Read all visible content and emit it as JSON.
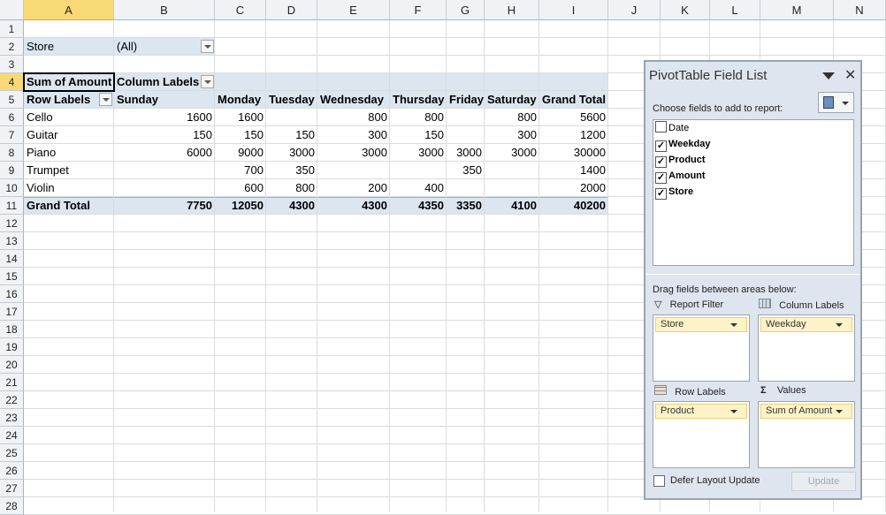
{
  "columns": [
    "A",
    "B",
    "C",
    "D",
    "E",
    "F",
    "G",
    "H",
    "I",
    "J",
    "K",
    "L",
    "M",
    "N"
  ],
  "rows": [
    "1",
    "2",
    "3",
    "4",
    "5",
    "6",
    "7",
    "8",
    "9",
    "10",
    "11",
    "12",
    "13",
    "14",
    "15",
    "16",
    "17",
    "18",
    "19",
    "20",
    "21",
    "22",
    "23",
    "24",
    "25",
    "26",
    "27",
    "28"
  ],
  "selected_cell": "A4",
  "pivot": {
    "filter_label": "Store",
    "filter_value": "(All)",
    "values_label": "Sum of Amount",
    "column_labels": "Column Labels",
    "row_labels": "Row Labels",
    "headers": [
      "Sunday",
      "Monday",
      "Tuesday",
      "Wednesday",
      "Thursday",
      "Friday",
      "Saturday",
      "Grand Total"
    ],
    "body": [
      {
        "label": "Cello",
        "values": [
          "1600",
          "1600",
          "",
          "800",
          "800",
          "",
          "800",
          "5600"
        ]
      },
      {
        "label": "Guitar",
        "values": [
          "150",
          "150",
          "150",
          "300",
          "150",
          "",
          "300",
          "1200"
        ]
      },
      {
        "label": "Piano",
        "values": [
          "6000",
          "9000",
          "3000",
          "3000",
          "3000",
          "3000",
          "3000",
          "30000"
        ]
      },
      {
        "label": "Trumpet",
        "values": [
          "",
          "700",
          "350",
          "",
          "",
          "350",
          "",
          "1400"
        ]
      },
      {
        "label": "Violin",
        "values": [
          "",
          "600",
          "800",
          "200",
          "400",
          "",
          "",
          "2000"
        ]
      }
    ],
    "total": {
      "label": "Grand Total",
      "values": [
        "7750",
        "12050",
        "4300",
        "4300",
        "4350",
        "3350",
        "4100",
        "40200"
      ]
    }
  },
  "field_list": {
    "title": "PivotTable Field List",
    "choose_label": "Choose fields to add to report:",
    "fields": [
      {
        "name": "Date",
        "checked": false
      },
      {
        "name": "Weekday",
        "checked": true
      },
      {
        "name": "Product",
        "checked": true
      },
      {
        "name": "Amount",
        "checked": true
      },
      {
        "name": "Store",
        "checked": true
      }
    ],
    "drag_label": "Drag fields between areas below:",
    "areas": {
      "report_filter": {
        "label": "Report Filter",
        "item": "Store"
      },
      "column_labels": {
        "label": "Column Labels",
        "item": "Weekday"
      },
      "row_labels": {
        "label": "Row Labels",
        "item": "Product"
      },
      "values": {
        "label": "Values",
        "item": "Sum of Amount"
      }
    },
    "defer_label": "Defer Layout Update",
    "defer_checked": false,
    "update_label": "Update"
  }
}
